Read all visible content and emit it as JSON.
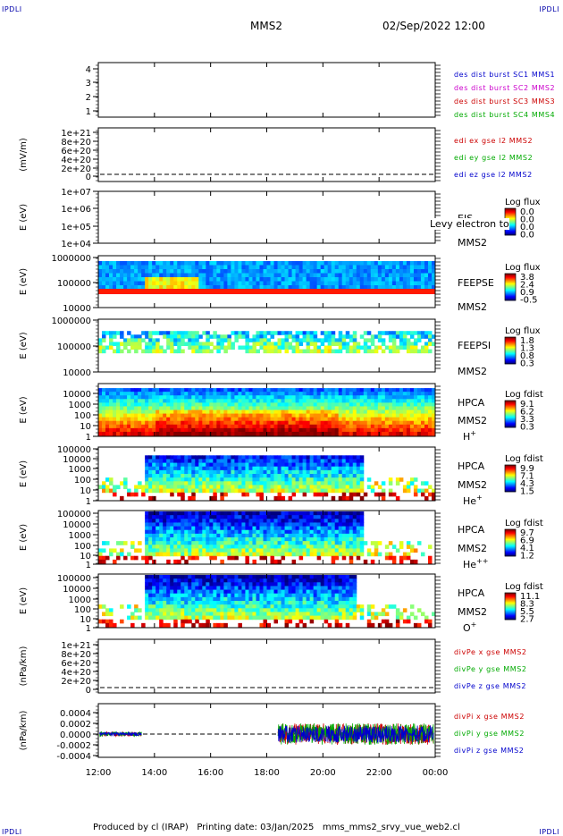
{
  "header": {
    "corner_label": "IPDLI",
    "spacecraft": "MMS2",
    "datetime": "02/Sep/2022 12:00"
  },
  "footer": {
    "text": "Produced by cl (IRAP)   Printing date: 03/Jan/2025   mms_mms2_srvy_vue_web2.cl"
  },
  "overlay_text": "Levy electron to",
  "chart_data": {
    "type": "heatmap",
    "x_ticks": [
      "12:00",
      "14:00",
      "16:00",
      "18:00",
      "20:00",
      "22:00",
      "00:00"
    ],
    "x_range_hours": [
      12,
      24
    ],
    "panels": [
      {
        "id": "dist",
        "kind": "status",
        "ylabel": "",
        "yticks": [
          "4",
          "3",
          "2",
          "1"
        ],
        "legend": [
          {
            "text": "des dist burst SC1 MMS1",
            "color": "#0000cc"
          },
          {
            "text": "des dist burst SC2 MMS2",
            "color": "#cc00cc"
          },
          {
            "text": "des dist burst SC3 MMS3",
            "color": "#cc0000"
          },
          {
            "text": "des dist burst SC4 MMS4",
            "color": "#00aa00"
          }
        ]
      },
      {
        "id": "edi",
        "kind": "line",
        "ylabel": "(mV/m)",
        "yticks": [
          "1e+21",
          "8e+20",
          "6e+20",
          "4e+20",
          "2e+20",
          "0"
        ],
        "legend": [
          {
            "text": "edi ex gse l2 MMS2",
            "color": "#cc0000"
          },
          {
            "text": "edi ey gse l2 MMS2",
            "color": "#00aa00"
          },
          {
            "text": "edi ez gse l2 MMS2",
            "color": "#0000cc"
          }
        ]
      },
      {
        "id": "eis",
        "kind": "spec",
        "ylabel": "E (eV)",
        "yticks": [
          "1e+07",
          "1e+06",
          "1e+05",
          "1e+04"
        ],
        "instrument": [
          "EIS",
          "MMS2"
        ],
        "cbar_title": "Log flux",
        "cbar_ticks": [
          "0.0",
          "0.0",
          "0.0",
          "0.0"
        ]
      },
      {
        "id": "feepse",
        "kind": "spec",
        "ylabel": "E (eV)",
        "yticks": [
          "1000000",
          "100000",
          "10000"
        ],
        "instrument": [
          "FEEPSE",
          "MMS2"
        ],
        "cbar_title": "Log flux",
        "cbar_ticks": [
          "3.8",
          "2.4",
          "0.9",
          "-0.5"
        ]
      },
      {
        "id": "feepsi",
        "kind": "spec",
        "ylabel": "E (eV)",
        "yticks": [
          "1000000",
          "100000",
          "10000"
        ],
        "instrument": [
          "FEEPSI",
          "MMS2"
        ],
        "cbar_title": "Log flux",
        "cbar_ticks": [
          "1.8",
          "1.3",
          "0.8",
          "0.3"
        ]
      },
      {
        "id": "hpca_h",
        "kind": "spec",
        "ylabel": "E (eV)",
        "yticks": [
          "10000",
          "1000",
          "100",
          "10",
          "1"
        ],
        "instrument": [
          "HPCA",
          "MMS2"
        ],
        "species": "H",
        "charge": "+",
        "cbar_title": "Log fdist",
        "cbar_ticks": [
          "9.1",
          "6.2",
          "3.3",
          "0.3"
        ]
      },
      {
        "id": "hpca_he1",
        "kind": "spec",
        "ylabel": "E (eV)",
        "yticks": [
          "100000",
          "10000",
          "1000",
          "100",
          "10",
          "1"
        ],
        "instrument": [
          "HPCA",
          "MMS2"
        ],
        "species": "He",
        "charge": "+",
        "cbar_title": "Log fdist",
        "cbar_ticks": [
          "9.9",
          "7.1",
          "4.3",
          "1.5"
        ]
      },
      {
        "id": "hpca_he2",
        "kind": "spec",
        "ylabel": "E (eV)",
        "yticks": [
          "100000",
          "10000",
          "1000",
          "100",
          "10",
          "1"
        ],
        "instrument": [
          "HPCA",
          "MMS2"
        ],
        "species": "He",
        "charge": "++",
        "cbar_title": "Log fdist",
        "cbar_ticks": [
          "9.7",
          "6.9",
          "4.1",
          "1.2"
        ]
      },
      {
        "id": "hpca_o",
        "kind": "spec",
        "ylabel": "E (eV)",
        "yticks": [
          "100000",
          "10000",
          "1000",
          "100",
          "10",
          "1"
        ],
        "instrument": [
          "HPCA",
          "MMS2"
        ],
        "species": "O",
        "charge": "+",
        "cbar_title": "Log fdist",
        "cbar_ticks": [
          "11.1",
          "8.3",
          "5.5",
          "2.7"
        ]
      },
      {
        "id": "divpe",
        "kind": "line",
        "ylabel": "(nPa/km)",
        "yticks": [
          "1e+21",
          "8e+20",
          "6e+20",
          "4e+20",
          "2e+20",
          "0"
        ],
        "legend": [
          {
            "text": "divPe x gse MMS2",
            "color": "#cc0000"
          },
          {
            "text": "divPe y gse MMS2",
            "color": "#00aa00"
          },
          {
            "text": "divPe z gse MMS2",
            "color": "#0000cc"
          }
        ]
      },
      {
        "id": "divpi",
        "kind": "line",
        "ylabel": "(nPa/km)",
        "yticks": [
          "0.0004",
          "0.0002",
          "0.0000",
          "-0.0002",
          "-0.0004"
        ],
        "legend": [
          {
            "text": "divPi x gse MMS2",
            "color": "#cc0000"
          },
          {
            "text": "divPi y gse MMS2",
            "color": "#00aa00"
          },
          {
            "text": "divPi z gse MMS2",
            "color": "#0000cc"
          }
        ]
      }
    ]
  }
}
